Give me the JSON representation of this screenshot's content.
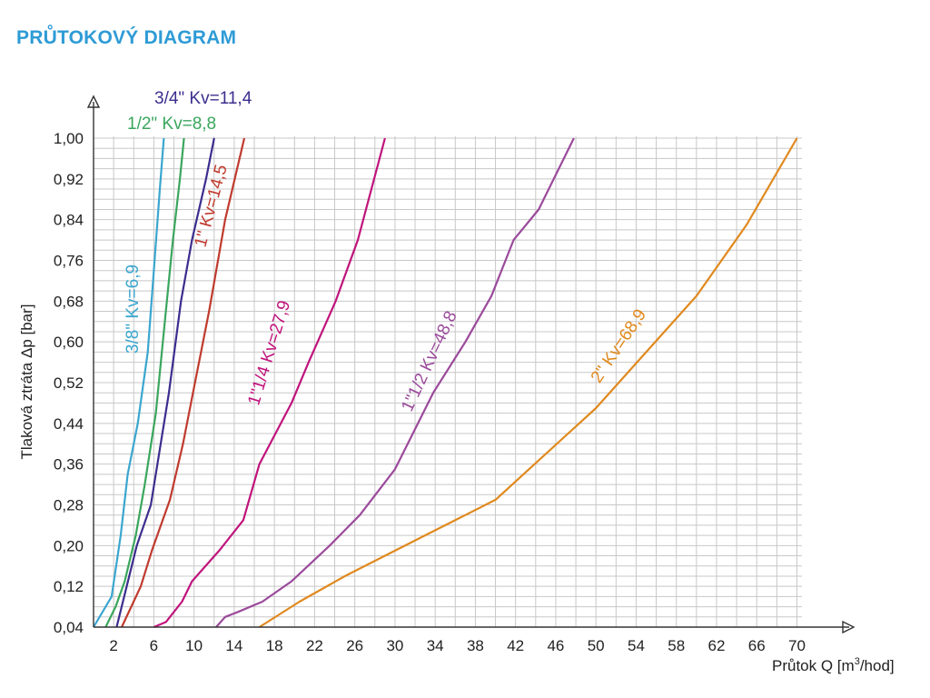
{
  "title": "PRŮTOKOVÝ DIAGRAM",
  "chart_data": {
    "type": "line",
    "title": "PRŮTOKOVÝ DIAGRAM",
    "ylabel": "Tlaková ztráta Δp [bar]",
    "xlabel_main": "Průtok Q [m",
    "xlabel_sup": "3",
    "xlabel_end": "/hod]",
    "xlim": [
      0,
      72
    ],
    "ylim": [
      0.04,
      1.0
    ],
    "x_ticks": [
      2,
      6,
      10,
      14,
      18,
      22,
      26,
      30,
      34,
      38,
      42,
      46,
      50,
      54,
      58,
      62,
      66,
      70
    ],
    "y_ticks": [
      "0,04",
      "0,12",
      "0,20",
      "0,28",
      "0,36",
      "0,44",
      "0,52",
      "0,60",
      "0,68",
      "0,76",
      "0,84",
      "0,92",
      "1,00"
    ],
    "y_tick_values": [
      0.04,
      0.12,
      0.2,
      0.28,
      0.36,
      0.44,
      0.52,
      0.6,
      0.68,
      0.76,
      0.84,
      0.92,
      1.0
    ],
    "grid": true,
    "series": [
      {
        "name": "3/8\" Kv=6,9",
        "color": "#3aa6cf",
        "x": [
          0.0,
          1.8,
          2.7,
          3.4,
          4.4,
          5.4,
          6.0,
          6.6,
          7.0
        ],
        "y": [
          0.04,
          0.1,
          0.22,
          0.34,
          0.44,
          0.58,
          0.74,
          0.9,
          1.0
        ]
      },
      {
        "name": "1/2\" Kv=8,8",
        "color": "#3aa65c",
        "x": [
          1.2,
          2.2,
          3.1,
          4.2,
          5.1,
          6.2,
          7.0,
          7.9,
          8.6,
          9.0
        ],
        "y": [
          0.04,
          0.08,
          0.13,
          0.22,
          0.32,
          0.46,
          0.62,
          0.8,
          0.92,
          1.0
        ]
      },
      {
        "name": "3/4\" Kv=11,4",
        "color": "#3b2e8e",
        "x": [
          2.3,
          3.3,
          4.3,
          5.7,
          7.5,
          8.7,
          9.8,
          11.2,
          12.0
        ],
        "y": [
          0.04,
          0.12,
          0.2,
          0.28,
          0.5,
          0.68,
          0.8,
          0.92,
          1.0
        ]
      },
      {
        "name": "1\" Kv=14,5",
        "color": "#c03a2e",
        "x": [
          2.8,
          4.7,
          5.8,
          7.6,
          8.9,
          10.0,
          11.5,
          13.1,
          15.0
        ],
        "y": [
          0.04,
          0.12,
          0.19,
          0.29,
          0.4,
          0.51,
          0.66,
          0.84,
          1.0
        ]
      },
      {
        "name": "1\"1/4 Kv=27,9",
        "color": "#c0147c",
        "x": [
          6.0,
          7.2,
          8.8,
          9.8,
          12.5,
          14.9,
          16.5,
          19.7,
          21.4,
          24.1,
          26.3,
          29.0
        ],
        "y": [
          0.04,
          0.05,
          0.09,
          0.13,
          0.19,
          0.25,
          0.36,
          0.48,
          0.56,
          0.68,
          0.8,
          1.0
        ]
      },
      {
        "name": "1\"1/2 Kv=48,8",
        "color": "#9b4a9b",
        "x": [
          12.2,
          13.1,
          14.4,
          16.8,
          19.7,
          23.5,
          26.5,
          30.0,
          33.8,
          37.0,
          39.6,
          41.8,
          44.3,
          47.8
        ],
        "y": [
          0.04,
          0.06,
          0.07,
          0.09,
          0.13,
          0.2,
          0.26,
          0.35,
          0.5,
          0.6,
          0.69,
          0.8,
          0.86,
          1.0
        ]
      },
      {
        "name": "2\" Kv=68,9",
        "color": "#e0891e",
        "x": [
          16.5,
          20.5,
          25.0,
          30.0,
          40.0,
          50.0,
          60.0,
          65.0,
          70.0
        ],
        "y": [
          0.04,
          0.09,
          0.14,
          0.19,
          0.29,
          0.47,
          0.69,
          0.83,
          1.0
        ]
      }
    ]
  }
}
